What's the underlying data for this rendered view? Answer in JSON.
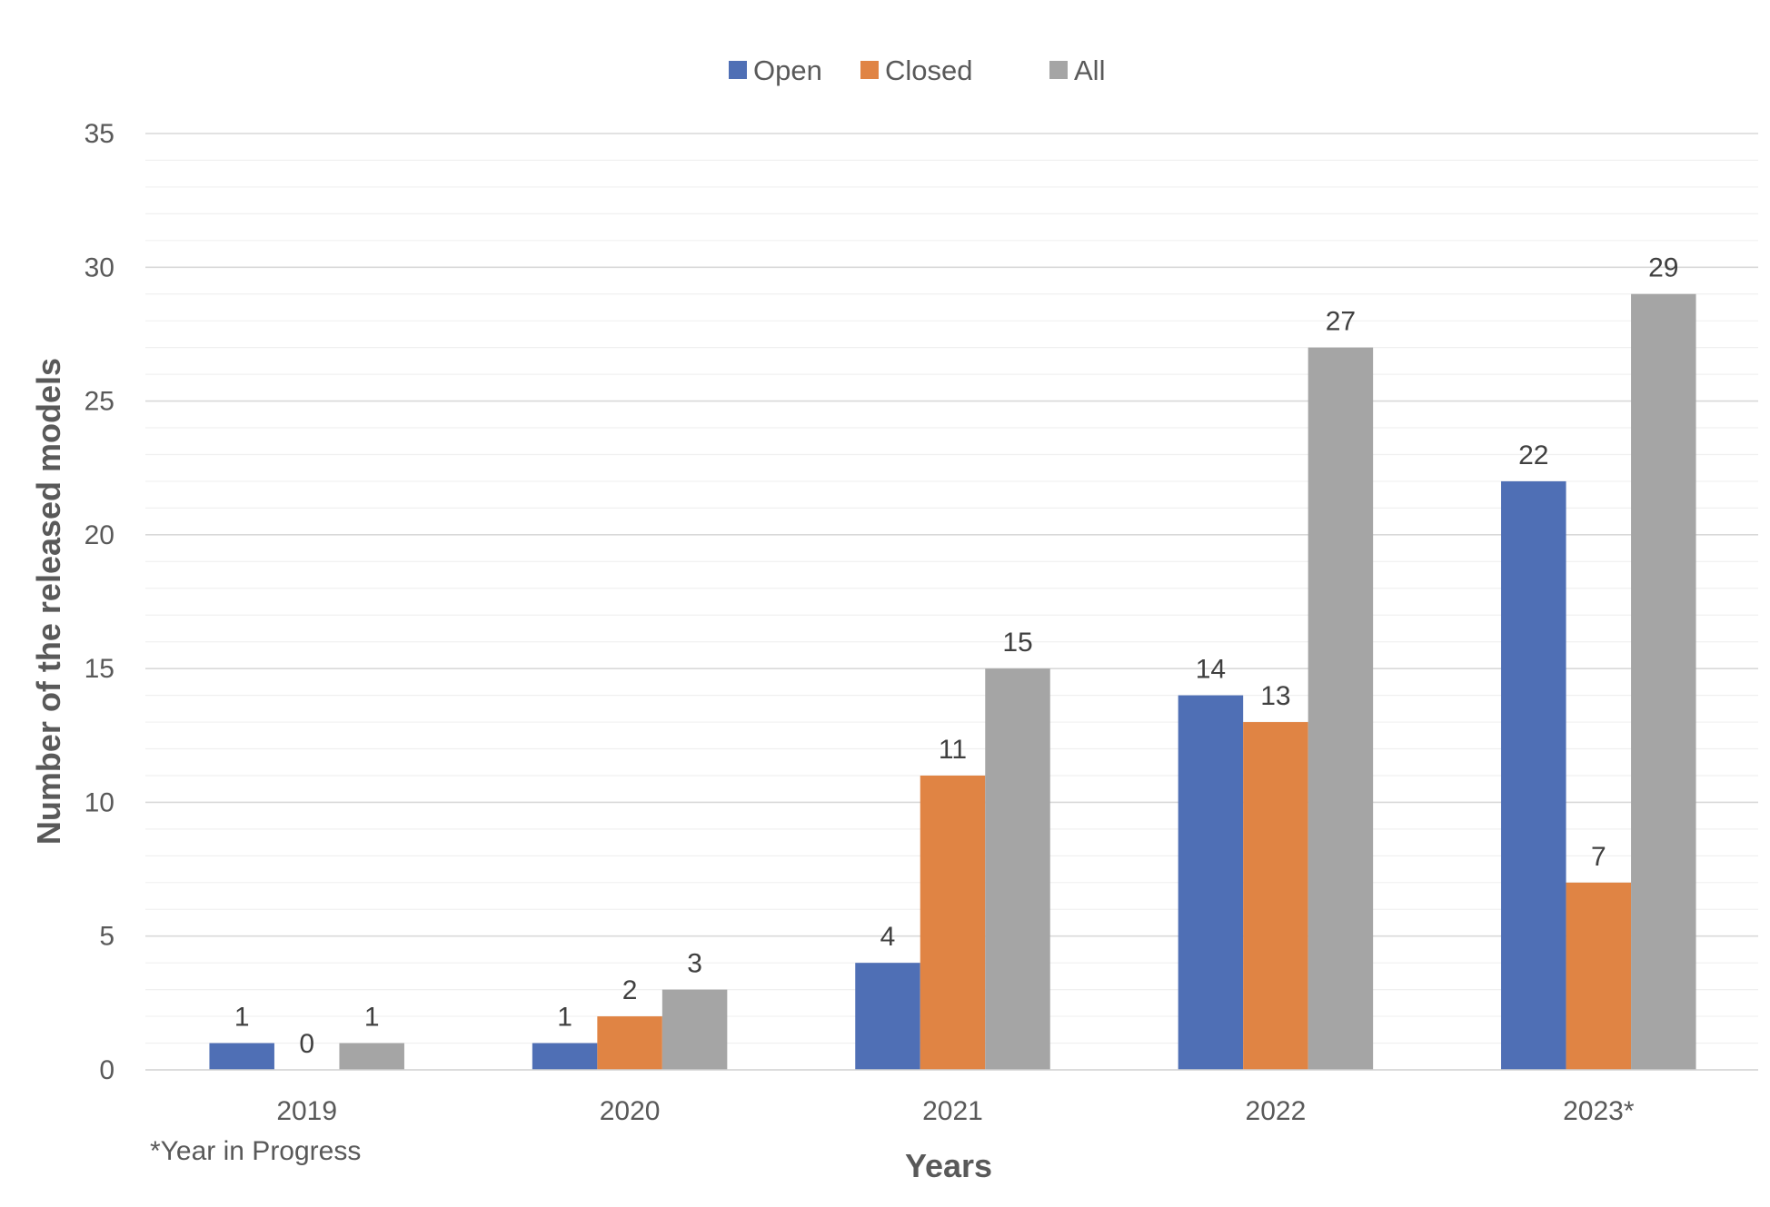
{
  "chart_data": {
    "type": "bar",
    "categories": [
      "2019",
      "2020",
      "2021",
      "2022",
      "2023*"
    ],
    "series": [
      {
        "name": "Open",
        "color": "#4F6FB5",
        "values": [
          1,
          1,
          4,
          14,
          22
        ]
      },
      {
        "name": "Closed",
        "color": "#E08444",
        "values": [
          0,
          2,
          11,
          13,
          7
        ]
      },
      {
        "name": "All",
        "color": "#A5A5A5",
        "values": [
          1,
          3,
          15,
          27,
          29
        ]
      }
    ],
    "xlabel": "Years",
    "ylabel": "Number of the released models",
    "ylim": [
      0,
      35
    ],
    "yticks": [
      0,
      5,
      10,
      15,
      20,
      25,
      30,
      35
    ],
    "minor_grid_step": 1,
    "grid": true,
    "legend_position": "top-center",
    "data_labels": true,
    "footnote": "*Year in Progress"
  }
}
